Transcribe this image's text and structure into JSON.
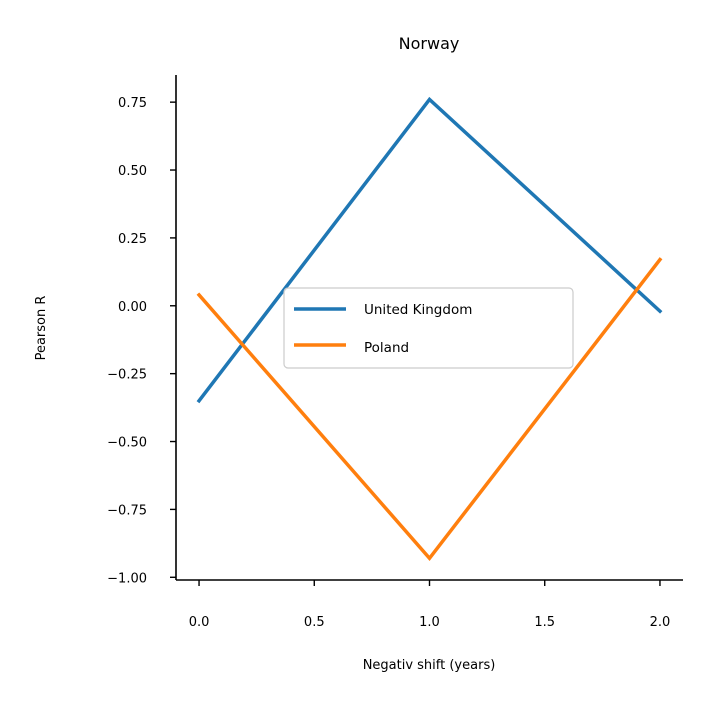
{
  "chart_data": {
    "type": "line",
    "title": "Norway",
    "xlabel": "Negativ shift (years)",
    "ylabel": "Pearson R",
    "xlim": [
      -0.1,
      2.1
    ],
    "ylim": [
      -1.01,
      0.85
    ],
    "xticks": [
      0.0,
      0.5,
      1.0,
      1.5,
      2.0
    ],
    "xtick_labels": [
      "0.0",
      "0.5",
      "1.0",
      "1.5",
      "2.0"
    ],
    "yticks": [
      -1.0,
      -0.75,
      -0.5,
      -0.25,
      0.0,
      0.25,
      0.5,
      0.75
    ],
    "ytick_labels": [
      "−1.00",
      "−0.75",
      "−0.50",
      "−0.25",
      "0.00",
      "0.25",
      "0.50",
      "0.75"
    ],
    "grid": false,
    "legend_position": "center",
    "x": [
      0,
      1,
      2
    ],
    "series": [
      {
        "name": "United Kingdom",
        "color": "#1f77b4",
        "values": [
          -0.35,
          0.76,
          -0.02
        ]
      },
      {
        "name": "Poland",
        "color": "#ff7f0e",
        "values": [
          0.04,
          -0.93,
          0.17
        ]
      }
    ]
  }
}
